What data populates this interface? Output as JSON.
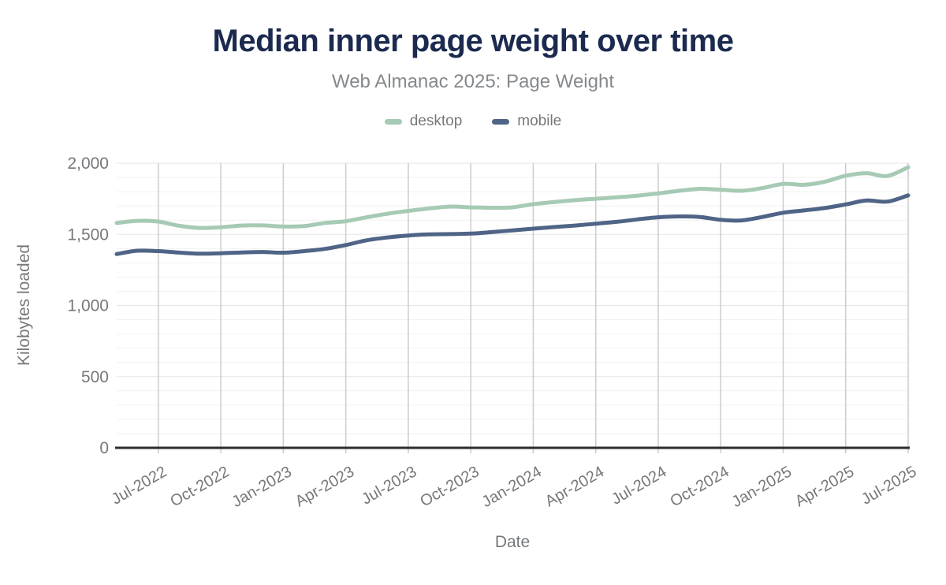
{
  "header": {
    "title": "Median inner page weight over time",
    "subtitle": "Web Almanac 2025: Page Weight"
  },
  "colors": {
    "title_text": "#1b2a4e",
    "subtitle_text": "#85898c",
    "tick_text": "#75787b",
    "axis_line": "#2e2e2e",
    "grid_vertical": "#cccccc",
    "grid_minor": "#f1f1f1",
    "grid_major": "#e5e5e5",
    "desktop_line": "#a6cab4",
    "mobile_line": "#4f6486"
  },
  "chart_data": {
    "type": "line",
    "title": "Median inner page weight over time",
    "subtitle": "Web Almanac 2025: Page Weight",
    "xlabel": "Date",
    "ylabel": "Kilobytes loaded",
    "legend_position": "top",
    "grid": {
      "vertical_at_xticks": true,
      "horizontal_minor_step": 100,
      "horizontal_major_step": 500
    },
    "ylim": [
      0,
      2000
    ],
    "yticks": [
      0,
      500,
      1000,
      1500,
      2000
    ],
    "ytick_labels": [
      "0",
      "500",
      "1,000",
      "1,500",
      "2,000"
    ],
    "xticks": [
      "Jul-2022",
      "Oct-2022",
      "Jan-2023",
      "Apr-2023",
      "Jul-2023",
      "Oct-2023",
      "Jan-2024",
      "Apr-2024",
      "Jul-2024",
      "Oct-2024",
      "Jan-2025",
      "Apr-2025",
      "Jul-2025"
    ],
    "x": [
      "May-2022",
      "Jun-2022",
      "Jul-2022",
      "Aug-2022",
      "Sep-2022",
      "Oct-2022",
      "Nov-2022",
      "Dec-2022",
      "Jan-2023",
      "Feb-2023",
      "Mar-2023",
      "Apr-2023",
      "May-2023",
      "Jun-2023",
      "Jul-2023",
      "Aug-2023",
      "Sep-2023",
      "Oct-2023",
      "Nov-2023",
      "Dec-2023",
      "Jan-2024",
      "Feb-2024",
      "Mar-2024",
      "Apr-2024",
      "May-2024",
      "Jun-2024",
      "Jul-2024",
      "Aug-2024",
      "Sep-2024",
      "Oct-2024",
      "Nov-2024",
      "Dec-2024",
      "Jan-2025",
      "Feb-2025",
      "Mar-2025",
      "Apr-2025",
      "May-2025",
      "Jun-2025",
      "Jul-2025"
    ],
    "series": [
      {
        "name": "desktop",
        "color": "#a6cab4",
        "values": [
          1580,
          1595,
          1590,
          1560,
          1545,
          1550,
          1562,
          1563,
          1555,
          1558,
          1580,
          1592,
          1620,
          1645,
          1665,
          1682,
          1695,
          1690,
          1687,
          1690,
          1712,
          1727,
          1740,
          1750,
          1760,
          1772,
          1788,
          1806,
          1820,
          1814,
          1806,
          1825,
          1855,
          1848,
          1870,
          1912,
          1930,
          1910,
          1972
        ]
      },
      {
        "name": "mobile",
        "color": "#4f6486",
        "values": [
          1362,
          1385,
          1382,
          1372,
          1364,
          1367,
          1373,
          1376,
          1371,
          1382,
          1398,
          1425,
          1458,
          1478,
          1492,
          1500,
          1502,
          1505,
          1516,
          1528,
          1540,
          1551,
          1562,
          1575,
          1588,
          1605,
          1620,
          1626,
          1622,
          1602,
          1598,
          1622,
          1652,
          1668,
          1685,
          1710,
          1738,
          1730,
          1774
        ]
      }
    ]
  }
}
